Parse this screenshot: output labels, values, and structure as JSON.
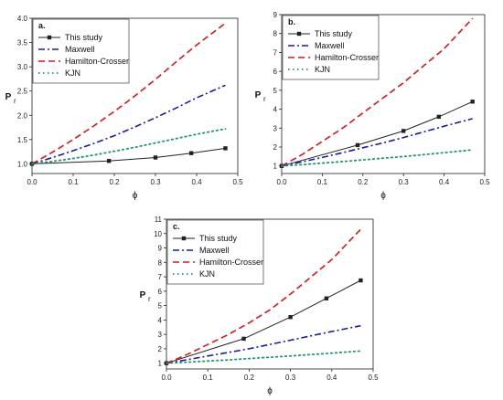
{
  "colors": {
    "This study": "#222222",
    "Maxwell": "#1a1aaa",
    "Hamilton-Crosser": "#e0141e",
    "KJN": "#1a9a6a"
  },
  "chart_data": [
    {
      "type": "line",
      "panel_label": "a.",
      "xlabel": "ϕ",
      "ylabel": "P",
      "ylabel_subscript": "r",
      "xlim": [
        0.0,
        0.5
      ],
      "ylim": [
        0.8,
        4.0
      ],
      "xticks": [
        0.0,
        0.1,
        0.2,
        0.3,
        0.4,
        0.5
      ],
      "xtick_labels": [
        "0.0",
        "0.1",
        "0.2",
        "0.3",
        "0.4",
        "0.5"
      ],
      "yticks": [
        1.0,
        1.5,
        2.0,
        2.5,
        3.0,
        3.5,
        4.0
      ],
      "ytick_labels": [
        "1.0",
        "1.5",
        "2.0",
        "2.5",
        "3.0",
        "3.5",
        "4.0"
      ],
      "legend_position": "top-left",
      "legend": [
        "This study",
        "Maxwell",
        "Hamilton-Crosser",
        "KJN"
      ],
      "series": [
        {
          "name": "This study",
          "style": "solid-marker",
          "x": [
            0.0,
            0.187,
            0.3,
            0.387,
            0.47
          ],
          "y": [
            1.0,
            1.06,
            1.13,
            1.22,
            1.32
          ]
        },
        {
          "name": "Maxwell",
          "style": "dashdot",
          "x": [
            0.0,
            0.05,
            0.1,
            0.15,
            0.2,
            0.25,
            0.3,
            0.35,
            0.4,
            0.47
          ],
          "y": [
            1.0,
            1.13,
            1.27,
            1.42,
            1.58,
            1.76,
            1.95,
            2.15,
            2.36,
            2.62
          ]
        },
        {
          "name": "Hamilton-Crosser",
          "style": "dashed",
          "x": [
            0.0,
            0.05,
            0.1,
            0.15,
            0.2,
            0.25,
            0.3,
            0.35,
            0.4,
            0.47
          ],
          "y": [
            1.0,
            1.24,
            1.5,
            1.78,
            2.08,
            2.4,
            2.74,
            3.1,
            3.45,
            3.9
          ]
        },
        {
          "name": "KJN",
          "style": "dotted",
          "x": [
            0.0,
            0.05,
            0.1,
            0.15,
            0.2,
            0.25,
            0.3,
            0.35,
            0.4,
            0.47
          ],
          "y": [
            1.0,
            1.05,
            1.11,
            1.18,
            1.26,
            1.34,
            1.43,
            1.52,
            1.61,
            1.72
          ]
        }
      ]
    },
    {
      "type": "line",
      "panel_label": "b.",
      "xlabel": "ϕ",
      "ylabel": "P",
      "ylabel_subscript": "r",
      "xlim": [
        0.0,
        0.5
      ],
      "ylim": [
        0.6,
        9.0
      ],
      "xticks": [
        0.0,
        0.1,
        0.2,
        0.3,
        0.4,
        0.5
      ],
      "xtick_labels": [
        "0.0",
        "0.1",
        "0.2",
        "0.3",
        "0.4",
        "0.5"
      ],
      "yticks": [
        1,
        2,
        3,
        4,
        5,
        6,
        7,
        8,
        9
      ],
      "ytick_labels": [
        "1",
        "2",
        "3",
        "4",
        "5",
        "6",
        "7",
        "8",
        "9"
      ],
      "legend_position": "top-left",
      "legend": [
        "This study",
        "Maxwell",
        "Hamilton-Crosser",
        "KJN"
      ],
      "series": [
        {
          "name": "This study",
          "style": "solid-marker",
          "x": [
            0.0,
            0.187,
            0.3,
            0.387,
            0.47
          ],
          "y": [
            1.0,
            2.1,
            2.85,
            3.6,
            4.4
          ]
        },
        {
          "name": "Maxwell",
          "style": "dashdot",
          "x": [
            0.0,
            0.05,
            0.1,
            0.15,
            0.2,
            0.25,
            0.3,
            0.35,
            0.4,
            0.47
          ],
          "y": [
            1.0,
            1.22,
            1.45,
            1.7,
            1.96,
            2.22,
            2.5,
            2.8,
            3.1,
            3.5
          ]
        },
        {
          "name": "Hamilton-Crosser",
          "style": "dashed",
          "x": [
            0.0,
            0.05,
            0.1,
            0.15,
            0.2,
            0.25,
            0.3,
            0.35,
            0.4,
            0.47
          ],
          "y": [
            1.0,
            1.6,
            2.3,
            3.0,
            3.8,
            4.6,
            5.4,
            6.3,
            7.2,
            8.8
          ]
        },
        {
          "name": "KJN",
          "style": "dotted",
          "x": [
            0.0,
            0.05,
            0.1,
            0.15,
            0.2,
            0.25,
            0.3,
            0.35,
            0.4,
            0.47
          ],
          "y": [
            1.0,
            1.07,
            1.15,
            1.23,
            1.32,
            1.41,
            1.5,
            1.6,
            1.7,
            1.85
          ]
        }
      ]
    },
    {
      "type": "line",
      "panel_label": "c.",
      "xlabel": "ϕ",
      "ylabel": "P",
      "ylabel_subscript": "r",
      "xlim": [
        0.0,
        0.5
      ],
      "ylim": [
        0.6,
        11.0
      ],
      "xticks": [
        0.0,
        0.1,
        0.2,
        0.3,
        0.4,
        0.5
      ],
      "xtick_labels": [
        "0.0",
        "0.1",
        "0.2",
        "0.3",
        "0.4",
        "0.5"
      ],
      "yticks": [
        1,
        2,
        3,
        4,
        5,
        6,
        7,
        8,
        9,
        10,
        11
      ],
      "ytick_labels": [
        "1",
        "2",
        "3",
        "4",
        "5",
        "6",
        "7",
        "8",
        "9",
        "10",
        "11"
      ],
      "legend_position": "top-left",
      "legend": [
        "This study",
        "Maxwell",
        "Hamilton-Crosser",
        "KJN"
      ],
      "series": [
        {
          "name": "This study",
          "style": "solid-marker",
          "x": [
            0.0,
            0.187,
            0.3,
            0.387,
            0.47
          ],
          "y": [
            1.0,
            2.7,
            4.2,
            5.5,
            6.75
          ]
        },
        {
          "name": "Maxwell",
          "style": "dashdot",
          "x": [
            0.0,
            0.05,
            0.1,
            0.15,
            0.2,
            0.25,
            0.3,
            0.35,
            0.4,
            0.47
          ],
          "y": [
            1.0,
            1.24,
            1.5,
            1.75,
            2.0,
            2.3,
            2.6,
            2.9,
            3.2,
            3.6
          ]
        },
        {
          "name": "Hamilton-Crosser",
          "style": "dashed",
          "x": [
            0.0,
            0.05,
            0.1,
            0.15,
            0.2,
            0.25,
            0.3,
            0.35,
            0.4,
            0.47
          ],
          "y": [
            1.0,
            1.6,
            2.3,
            3.0,
            3.8,
            4.7,
            5.8,
            7.0,
            8.2,
            10.3
          ]
        },
        {
          "name": "KJN",
          "style": "dotted",
          "x": [
            0.0,
            0.05,
            0.1,
            0.15,
            0.2,
            0.25,
            0.3,
            0.35,
            0.4,
            0.47
          ],
          "y": [
            1.0,
            1.07,
            1.15,
            1.23,
            1.32,
            1.41,
            1.5,
            1.6,
            1.7,
            1.85
          ]
        }
      ]
    }
  ]
}
